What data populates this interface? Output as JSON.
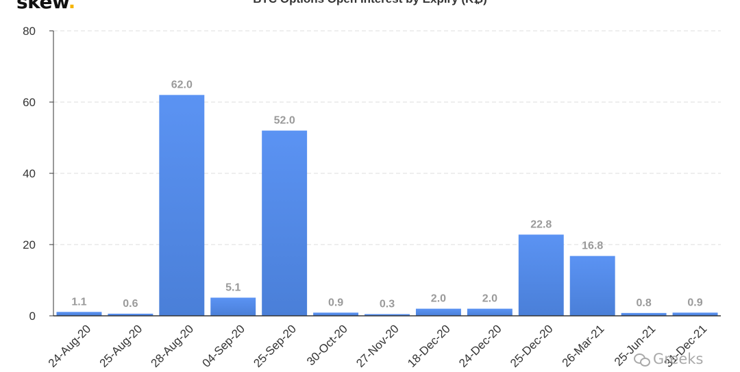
{
  "branding": {
    "logo_text": "skew",
    "logo_dot": ".",
    "watermark": "Greeks"
  },
  "colors": {
    "bar_top": "#5b93f3",
    "bar_bottom": "#4a7fd8",
    "label": "#9a9a9a",
    "grid": "#dddddd",
    "axis": "#333333"
  },
  "chart_data": {
    "type": "bar",
    "title": "BTC Options Open Interest by Expiry (K₿)",
    "categories": [
      "24-Aug-20",
      "25-Aug-20",
      "28-Aug-20",
      "04-Sep-20",
      "25-Sep-20",
      "30-Oct-20",
      "27-Nov-20",
      "18-Dec-20",
      "24-Dec-20",
      "25-Dec-20",
      "26-Mar-21",
      "25-Jun-21",
      "31-Dec-21"
    ],
    "values": [
      1.1,
      0.6,
      62.0,
      5.1,
      52.0,
      0.9,
      0.3,
      2.0,
      2.0,
      22.8,
      16.8,
      0.8,
      0.9
    ],
    "data_labels": [
      "1.1",
      "0.6",
      "62.0",
      "5.1",
      "52.0",
      "0.9",
      "0.3",
      "2.0",
      "2.0",
      "22.8",
      "16.8",
      "0.8",
      "0.9"
    ],
    "yticks": [
      "0",
      "20",
      "40",
      "60",
      "80"
    ],
    "ylim": [
      0,
      80
    ],
    "grid": true,
    "legend": "none"
  }
}
